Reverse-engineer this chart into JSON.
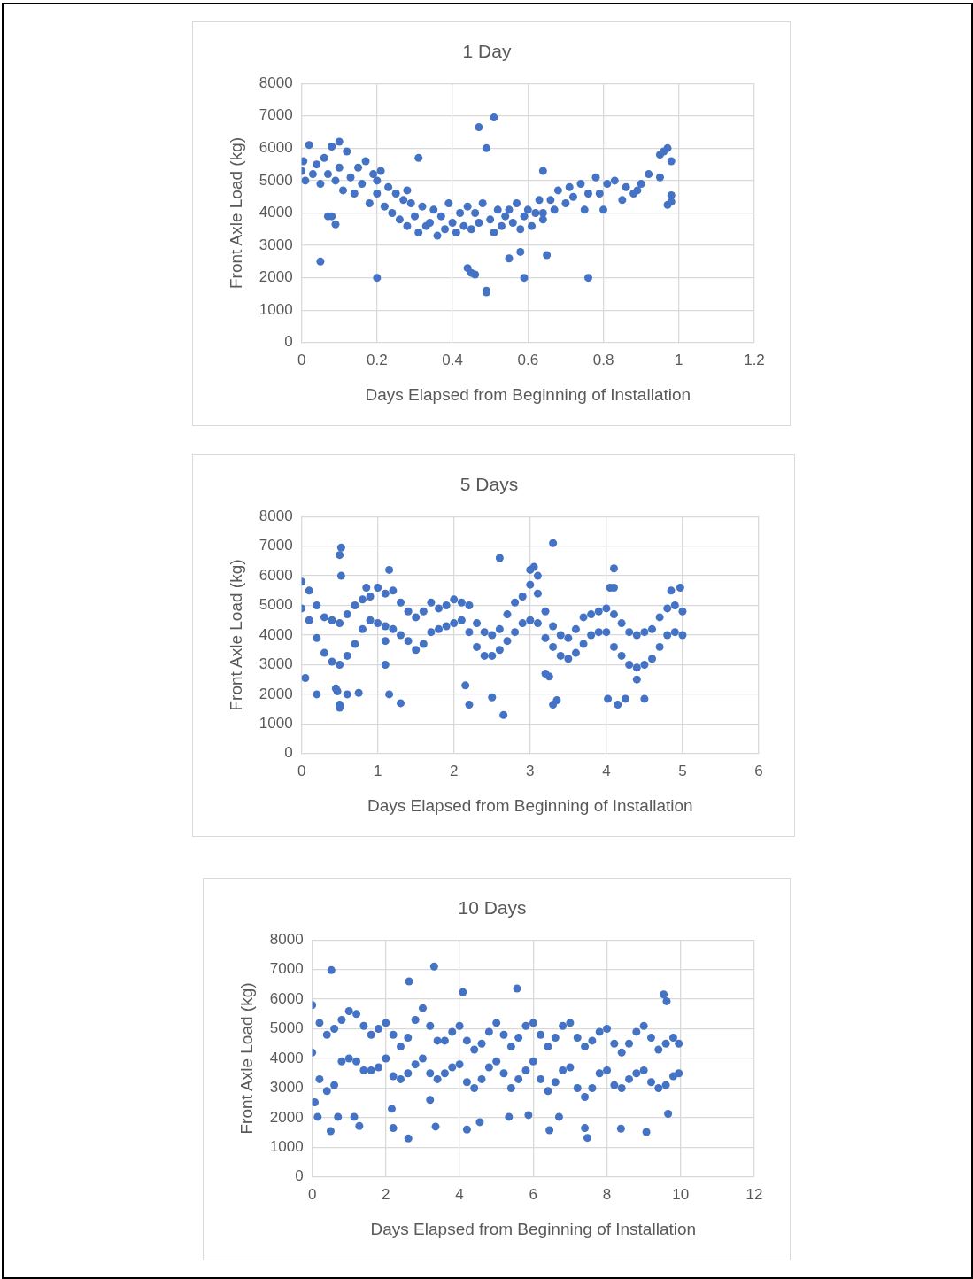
{
  "chart_data": [
    {
      "type": "scatter",
      "title": "1 Day",
      "xlabel": "Days Elapsed from Beginning of Installation",
      "ylabel": "Front Axle Load (kg)",
      "xlim": [
        0,
        1.2
      ],
      "xticks": [
        0,
        0.2,
        0.4,
        0.6,
        0.8,
        1,
        1.2
      ],
      "ylim": [
        0,
        8000
      ],
      "yticks": [
        0,
        1000,
        2000,
        3000,
        4000,
        5000,
        6000,
        7000,
        8000
      ],
      "grid": true,
      "marker": "circle",
      "series": [
        {
          "color": "#4472c4",
          "x": [
            0,
            0.005,
            0.01,
            0.02,
            0.03,
            0.04,
            0.05,
            0.06,
            0.07,
            0.08,
            0.09,
            0.1,
            0.1,
            0.11,
            0.12,
            0.13,
            0.14,
            0.15,
            0.16,
            0.17,
            0.18,
            0.19,
            0.2,
            0.21,
            0.22,
            0.23,
            0.24,
            0.25,
            0.26,
            0.27,
            0.28,
            0.29,
            0.3,
            0.31,
            0.32,
            0.33,
            0.35,
            0.36,
            0.37,
            0.38,
            0.39,
            0.4,
            0.41,
            0.42,
            0.43,
            0.44,
            0.45,
            0.46,
            0.47,
            0.48,
            0.5,
            0.51,
            0.52,
            0.53,
            0.54,
            0.56,
            0.57,
            0.58,
            0.59,
            0.6,
            0.61,
            0.62,
            0.63,
            0.64,
            0.66,
            0.67,
            0.68,
            0.7,
            0.71,
            0.72,
            0.74,
            0.76,
            0.78,
            0.79,
            0.81,
            0.83,
            0.86,
            0.88,
            0.9,
            0.05,
            0.2,
            0.44,
            0.45,
            0.46,
            0.49,
            0.49,
            0.47,
            0.51,
            0.49,
            0.59,
            0.76,
            0.55,
            0.58,
            0.65,
            0.31,
            0.2,
            0.07,
            0.08,
            0.09,
            0.28,
            0.92,
            0.95,
            0.96,
            0.97,
            0.98,
            0.97,
            0.98,
            0.98,
            0.95,
            0.8,
            0.85,
            0.75,
            0.89,
            0.64,
            0.55,
            0.64,
            0.34
          ],
          "values": [
            5300,
            5600,
            5000,
            6100,
            5200,
            5500,
            4900,
            5700,
            5200,
            6050,
            5000,
            6200,
            5400,
            4700,
            5900,
            5100,
            4600,
            5400,
            4900,
            5600,
            4300,
            5200,
            4600,
            5300,
            4200,
            4800,
            4000,
            4600,
            3800,
            4400,
            3600,
            4300,
            3900,
            3400,
            4200,
            3600,
            4100,
            3300,
            3900,
            3500,
            4300,
            3700,
            3400,
            4000,
            3600,
            4200,
            3500,
            4000,
            3700,
            4300,
            3800,
            3400,
            4100,
            3600,
            3900,
            3700,
            4300,
            3500,
            3900,
            4100,
            3600,
            4000,
            4400,
            3800,
            4400,
            4100,
            4700,
            4300,
            4800,
            4500,
            4900,
            4600,
            5100,
            4600,
            4900,
            5000,
            4800,
            4600,
            4900,
            2500,
            2000,
            2300,
            2150,
            2100,
            1600,
            1550,
            6650,
            6950,
            6000,
            2000,
            2000,
            2600,
            2800,
            2700,
            5700,
            5000,
            3900,
            3900,
            3650,
            4700,
            5200,
            5800,
            5900,
            6000,
            5600,
            4250,
            4350,
            4550,
            5100,
            4100,
            4400,
            4100,
            4700,
            5300,
            4100,
            4000,
            3700
          ]
        }
      ]
    },
    {
      "type": "scatter",
      "title": "5 Days",
      "xlabel": "Days Elapsed from Beginning of Installation",
      "ylabel": "Front Axle Load (kg)",
      "xlim": [
        0,
        6
      ],
      "xticks": [
        0,
        1,
        2,
        3,
        4,
        5,
        6
      ],
      "ylim": [
        0,
        8000
      ],
      "yticks": [
        0,
        1000,
        2000,
        3000,
        4000,
        5000,
        6000,
        7000,
        8000
      ],
      "grid": true,
      "marker": "circle",
      "series": [
        {
          "color": "#4472c4",
          "x": [
            0,
            0,
            0.1,
            0.1,
            0.2,
            0.2,
            0.3,
            0.3,
            0.4,
            0.4,
            0.5,
            0.5,
            0.6,
            0.6,
            0.7,
            0.7,
            0.8,
            0.8,
            0.9,
            0.9,
            1,
            1,
            1.1,
            1.1,
            1.2,
            1.2,
            1.3,
            1.3,
            1.4,
            1.4,
            1.5,
            1.5,
            1.6,
            1.6,
            1.7,
            1.7,
            1.8,
            1.8,
            1.9,
            1.9,
            2,
            2,
            2.1,
            2.1,
            2.2,
            2.2,
            2.3,
            2.3,
            2.4,
            2.4,
            2.5,
            2.5,
            2.6,
            2.6,
            2.7,
            2.7,
            2.8,
            2.8,
            2.9,
            2.9,
            3,
            3,
            3.1,
            3.1,
            3.2,
            3.2,
            3.3,
            3.3,
            3.4,
            3.4,
            3.5,
            3.5,
            3.6,
            3.6,
            3.7,
            3.7,
            3.8,
            3.8,
            3.9,
            3.9,
            4,
            4,
            4.1,
            4.1,
            4.2,
            4.2,
            4.3,
            4.3,
            4.4,
            4.4,
            4.5,
            4.5,
            4.6,
            4.6,
            4.7,
            4.7,
            4.8,
            4.8,
            4.9,
            4.9,
            5,
            5,
            0.05,
            0.2,
            0.45,
            0.47,
            0.5,
            0.5,
            0.6,
            0.75,
            0.52,
            0.5,
            0.52,
            1.15,
            1.3,
            1.1,
            1.1,
            0.85,
            1.15,
            2.15,
            2.2,
            2.5,
            2.65,
            2.6,
            3,
            3.05,
            3.1,
            3.25,
            3.3,
            3.35,
            3.3,
            3.2,
            4.02,
            4.15,
            4.25,
            4.5,
            4.1,
            4.05,
            4.1,
            4.85,
            4.97,
            4.4
          ],
          "values": [
            5800,
            4900,
            5500,
            4500,
            5000,
            3900,
            4600,
            3400,
            4500,
            3100,
            4400,
            3000,
            4700,
            3300,
            5000,
            3700,
            5200,
            4200,
            5300,
            4500,
            5600,
            4400,
            5400,
            4300,
            5500,
            4200,
            5100,
            4000,
            4800,
            3800,
            4600,
            3500,
            4800,
            3700,
            5100,
            4100,
            4900,
            4200,
            5000,
            4300,
            5200,
            4400,
            5100,
            4500,
            5000,
            4100,
            4400,
            3600,
            4100,
            3300,
            4000,
            3300,
            4200,
            3500,
            4700,
            3800,
            5100,
            4100,
            5300,
            4400,
            5700,
            4500,
            5400,
            4400,
            4800,
            3900,
            4300,
            3600,
            4000,
            3300,
            3900,
            3200,
            4200,
            3400,
            4600,
            3700,
            4700,
            4000,
            4800,
            4100,
            4900,
            4100,
            4700,
            3600,
            4400,
            3300,
            4100,
            3000,
            4000,
            2900,
            4100,
            3000,
            4200,
            3200,
            4600,
            3600,
            4900,
            4000,
            5000,
            4100,
            4800,
            4000,
            2550,
            2000,
            2200,
            2100,
            1650,
            1550,
            2000,
            2050,
            6950,
            6700,
            6000,
            2000,
            1700,
            3000,
            3800,
            5600,
            6200,
            2300,
            1650,
            1900,
            1300,
            6600,
            6200,
            6300,
            6000,
            2600,
            1650,
            1800,
            7100,
            2700,
            1850,
            1650,
            1850,
            1850,
            6250,
            5600,
            5600,
            5500,
            5600,
            2500
          ]
        }
      ]
    },
    {
      "type": "scatter",
      "title": "10 Days",
      "xlabel": "Days Elapsed from Beginning of Installation",
      "ylabel": "Front Axle Load (kg)",
      "xlim": [
        0,
        12
      ],
      "xticks": [
        0,
        2,
        4,
        6,
        8,
        10,
        12
      ],
      "ylim": [
        0,
        8000
      ],
      "yticks": [
        0,
        1000,
        2000,
        3000,
        4000,
        5000,
        6000,
        7000,
        8000
      ],
      "grid": true,
      "marker": "circle",
      "series": [
        {
          "color": "#4472c4",
          "x": [
            0,
            0,
            0.2,
            0.2,
            0.4,
            0.4,
            0.6,
            0.6,
            0.8,
            0.8,
            1,
            1,
            1.2,
            1.2,
            1.4,
            1.4,
            1.6,
            1.6,
            1.8,
            1.8,
            2,
            2,
            2.2,
            2.2,
            2.4,
            2.4,
            2.6,
            2.6,
            2.8,
            2.8,
            3,
            3,
            3.2,
            3.2,
            3.4,
            3.4,
            3.6,
            3.6,
            3.8,
            3.8,
            4,
            4,
            4.2,
            4.2,
            4.4,
            4.4,
            4.6,
            4.6,
            4.8,
            4.8,
            5,
            5,
            5.2,
            5.2,
            5.4,
            5.4,
            5.6,
            5.6,
            5.8,
            5.8,
            6,
            6,
            6.2,
            6.2,
            6.4,
            6.4,
            6.6,
            6.6,
            6.8,
            6.8,
            7,
            7,
            7.2,
            7.2,
            7.4,
            7.4,
            7.6,
            7.6,
            7.8,
            7.8,
            8,
            8,
            8.2,
            8.2,
            8.4,
            8.4,
            8.6,
            8.6,
            8.8,
            8.8,
            9,
            9,
            9.2,
            9.2,
            9.4,
            9.4,
            9.6,
            9.6,
            9.8,
            9.8,
            9.95,
            9.95,
            0.52,
            3.31,
            2.63,
            4.09,
            5.56,
            9.54,
            9.62,
            0.07,
            0.5,
            2.61,
            2.2,
            3.35,
            4.2,
            4.55,
            6.44,
            7.47,
            8.38,
            9.07,
            9.66,
            5.34,
            5.87,
            6.7,
            7.4,
            2.16,
            0.15,
            0.7,
            1.14,
            1.28,
            3.2
          ],
          "values": [
            5800,
            4200,
            5200,
            3300,
            4800,
            2900,
            5000,
            3100,
            5300,
            3900,
            5600,
            4000,
            5500,
            3900,
            5100,
            3600,
            4800,
            3600,
            5000,
            3700,
            5200,
            4000,
            4800,
            3400,
            4400,
            3300,
            4700,
            3500,
            5300,
            3800,
            5700,
            4000,
            5100,
            3500,
            4600,
            3300,
            4600,
            3500,
            4900,
            3700,
            5100,
            3800,
            4600,
            3200,
            4300,
            3000,
            4500,
            3300,
            4900,
            3700,
            5200,
            3900,
            4800,
            3500,
            4400,
            3000,
            4700,
            3300,
            5100,
            3600,
            5200,
            3900,
            4800,
            3300,
            4400,
            2900,
            4700,
            3200,
            5100,
            3600,
            5200,
            3700,
            4700,
            3000,
            4400,
            2700,
            4600,
            3000,
            4900,
            3500,
            5000,
            3600,
            4500,
            3100,
            4200,
            3000,
            4500,
            3300,
            4900,
            3500,
            5100,
            3600,
            4700,
            3200,
            4300,
            3000,
            4500,
            3100,
            4700,
            3400,
            4500,
            3500,
            6980,
            7100,
            6600,
            6240,
            6360,
            6160,
            5930,
            2520,
            1550,
            1300,
            1650,
            1700,
            1600,
            1850,
            1580,
            1320,
            1630,
            1520,
            2130,
            2030,
            2090,
            2030,
            1650,
            2300,
            2030,
            2030,
            2030,
            1720,
            2600
          ]
        }
      ]
    }
  ]
}
